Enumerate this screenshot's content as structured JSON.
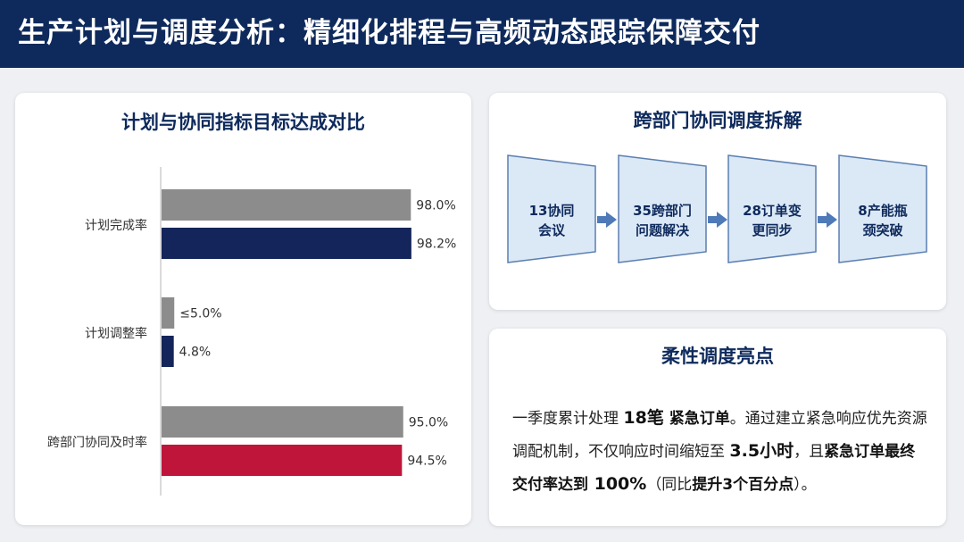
{
  "header": {
    "title": "生产计划与调度分析：精细化排程与高频动态跟踪保障交付"
  },
  "chart_data": {
    "type": "bar",
    "orientation": "horizontal",
    "title": "计划与协同指标目标达成对比",
    "categories": [
      "计划完成率",
      "计划调整率",
      "跨部门协同及时率"
    ],
    "series": [
      {
        "values": [
          98.0,
          5.0,
          95.0
        ],
        "labels": [
          "98.0%",
          "≤5.0%",
          "95.0%"
        ]
      },
      {
        "values": [
          98.2,
          4.8,
          94.5
        ],
        "labels": [
          "98.2%",
          "4.8%",
          "94.5%"
        ]
      }
    ],
    "xlim": [
      0,
      100
    ],
    "grid": false,
    "colors": {
      "target": "#8c8c8c",
      "actual": "#13255a",
      "highlight": "#c0153a"
    },
    "highlight": {
      "category_index": 2,
      "series_index": 1
    }
  },
  "flow": {
    "title": "跨部门协同调度拆解",
    "steps": [
      {
        "line1": "13协同",
        "line2": "会议"
      },
      {
        "line1": "35跨部门",
        "line2": "问题解决"
      },
      {
        "line1": "28订单变",
        "line2": "更同步"
      },
      {
        "line1": "8产能瓶",
        "line2": "颈突破"
      }
    ],
    "colors": {
      "fill": "#dbe8f6",
      "stroke": "#5b7fb0",
      "arrow": "#4f7ab8",
      "text": "#0e2a5c"
    }
  },
  "highlights": {
    "title": "柔性调度亮点",
    "s1": "一季度累计处理 ",
    "b1": "18笔",
    "b2": " 紧急订单",
    "s2": "。通过建立紧急响应优先资源调配机制，不仅响应时间缩短至 ",
    "b3": "3.5小时",
    "s3": "，且",
    "b4": "紧急订单最终交付率达到",
    "b5": " 100%",
    "s4": "（同比",
    "b6": "提升3个百分点",
    "s5": "）。"
  }
}
